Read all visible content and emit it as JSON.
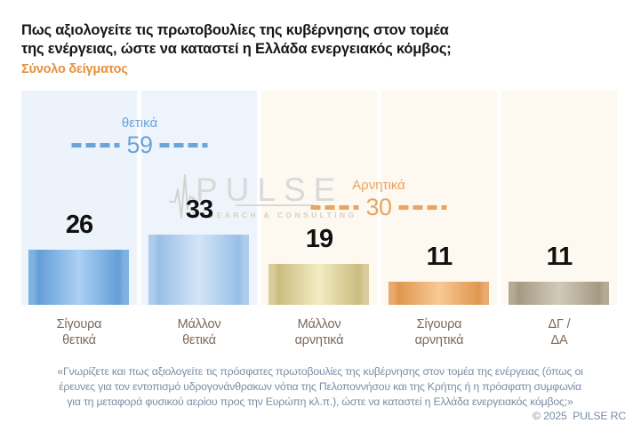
{
  "header": {
    "title_line1": "Πως αξιολογείτε τις πρωτοβουλίες της κυβέρνησης στον τομέα",
    "title_line2": "της ενέργειας, ώστε να καταστεί η Ελλάδα ενεργειακός κόμβος;",
    "subtitle": "Σύνολο δείγματος"
  },
  "chart_data": {
    "type": "bar",
    "title": "Πως αξιολογείτε τις πρωτοβουλίες της κυβέρνησης στον τομέα της ενέργειας, ώστε να καταστεί η Ελλάδα ενεργειακός κόμβος;",
    "subtitle": "Σύνολο δείγματος",
    "categories": [
      "Σίγουρα θετικά",
      "Μάλλον θετικά",
      "Μάλλον αρνητικά",
      "Σίγουρα αρνητικά",
      "ΔΓ / ΔΑ"
    ],
    "values": [
      26,
      33,
      19,
      11,
      11
    ],
    "ylim": [
      0,
      100
    ],
    "grid": false,
    "legend": "none",
    "data_labels": true,
    "groups": [
      {
        "label": "θετικά",
        "total": 59,
        "color": "#6ba3db",
        "categories": [
          "Σίγουρα θετικά",
          "Μάλλον θετικά"
        ]
      },
      {
        "label": "Αρνητικά",
        "total": 30,
        "color": "#e8a560",
        "categories": [
          "Μάλλον αρνητικά",
          "Σίγουρα αρνητικά"
        ]
      }
    ]
  },
  "bar_labels": [
    {
      "line1": "Σίγουρα",
      "line2": "θετικά"
    },
    {
      "line1": "Μάλλον",
      "line2": "θετικά"
    },
    {
      "line1": "Μάλλον",
      "line2": "αρνητικά"
    },
    {
      "line1": "Σίγουρα",
      "line2": "αρνητικά"
    },
    {
      "line1": "ΔΓ /",
      "line2": "ΔΑ"
    }
  ],
  "bar_styles": [
    {
      "outer": "#7fb2e1",
      "edge": "#649ed7",
      "center": "#abd0f3"
    },
    {
      "outer": "#aecdec",
      "edge": "#98bfe7",
      "center": "#d3e5f7"
    },
    {
      "outer": "#d9cb9b",
      "edge": "#cbbb7f",
      "center": "#f3ecc2"
    },
    {
      "outer": "#e9a96f",
      "edge": "#e0974f",
      "center": "#f8c994"
    },
    {
      "outer": "#b4aa95",
      "edge": "#a49a84",
      "center": "#d2cab9"
    }
  ],
  "column_bg": [
    "#edf3fa",
    "#eef4fb",
    "#fdf8f0",
    "#fdf8f0",
    "#fdf8f0"
  ],
  "palette": {
    "subtitle_orange": "#e5913d",
    "positive_blue": "#6ba3db",
    "negative_orange": "#e8a560",
    "footer_gray_blue": "#7b8ea4",
    "category_brown": "#7d6a5a"
  },
  "watermark": {
    "brand": "PULSE",
    "tagline": "RESEARCH & CONSULTING"
  },
  "footer": {
    "line1": "«Γνωρίζετε και πως αξιολογείτε τις πρόσφατες πρωτοβουλίες της κυβέρνησης στον τομέα της ενέργειας (όπως οι",
    "line2": "έρευνες για τον εντοπισμό υδρογονάνθρακων νότια της Πελοποννήσου και της Κρήτης ή η πρόσφατη συμφωνία",
    "line3": "για τη μεταφορά φυσικού αερίου προς την Ευρώπη κλ.π.), ώστε να καταστεί η Ελλάδα ενεργειακός κόμβος;»",
    "copyright": "© 2025  PULSE RC"
  }
}
